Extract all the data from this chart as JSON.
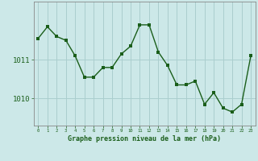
{
  "x": [
    0,
    1,
    2,
    3,
    4,
    5,
    6,
    7,
    8,
    9,
    10,
    11,
    12,
    13,
    14,
    15,
    16,
    17,
    18,
    19,
    20,
    21,
    22,
    23
  ],
  "y": [
    1011.55,
    1011.85,
    1011.6,
    1011.5,
    1011.1,
    1010.55,
    1010.55,
    1010.8,
    1010.8,
    1011.15,
    1011.35,
    1011.9,
    1011.9,
    1011.2,
    1010.85,
    1010.35,
    1010.35,
    1010.45,
    1009.85,
    1010.15,
    1009.75,
    1009.65,
    1009.85,
    1011.1
  ],
  "line_color": "#1a5e1a",
  "marker_color": "#1a5e1a",
  "bg_color": "#cce8e8",
  "grid_color": "#aacece",
  "axis_color": "#555555",
  "xlabel": "Graphe pression niveau de la mer (hPa)",
  "yticks": [
    1010,
    1011
  ],
  "ylim": [
    1009.3,
    1012.5
  ],
  "xlim": [
    -0.5,
    23.5
  ],
  "font_color": "#1a5e1a"
}
